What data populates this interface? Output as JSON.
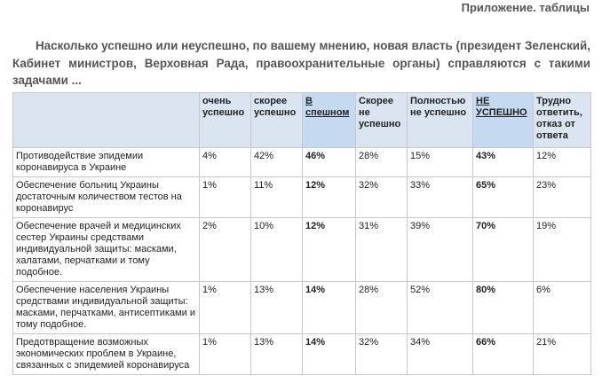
{
  "header": {
    "title": "Приложение. таблицы"
  },
  "question": "Насколько успешно или неуспешно, по вашему мнению, новая власть (президент Зеленский, Кабинет министров, Верховная Рада, правоохранительные органы) справляются с такими задачами ...",
  "table": {
    "columns": [
      "",
      "очень успешно",
      "скорее успешно",
      "В спешном",
      "Скорее не успешно",
      "Полностью не успешно",
      "НЕ УСПЕШНО",
      "Трудно ответить, отказ от ответа"
    ],
    "rows": [
      [
        "Противодействие эпидемии коронавируса в Украине",
        "4%",
        "42%",
        "46%",
        "28%",
        "15%",
        "43%",
        "12%"
      ],
      [
        "Обеспечение больниц Украины достаточным количеством тестов на коронавирус",
        "1%",
        "11%",
        "12%",
        "32%",
        "33%",
        "65%",
        "23%"
      ],
      [
        "Обеспечение врачей и медицинских сестер Украины средствами индивидуальной защиты: масками, халатами, перчатками и тому подобное.",
        "2%",
        "10%",
        "12%",
        "31%",
        "39%",
        "70%",
        "19%"
      ],
      [
        "Обеспечение населения Украины средствами индивидуальной защиты: масками, перчатками, антисептиками и тому подобное.",
        "1%",
        "13%",
        "14%",
        "28%",
        "52%",
        "80%",
        "6%"
      ],
      [
        "Предотвращение возможных экономических проблем в Украине, связанных с эпидемией коронавируса",
        "1%",
        "13%",
        "14%",
        "32%",
        "34%",
        "66%",
        "21%"
      ]
    ]
  }
}
